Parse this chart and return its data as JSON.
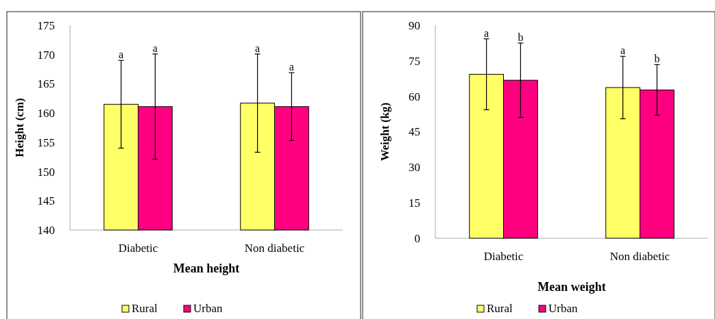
{
  "chart_data": [
    {
      "type": "bar",
      "xlabel": "Mean height",
      "ylabel": "Height (cm)",
      "categories": [
        "Diabetic",
        "Non diabetic"
      ],
      "ylim": [
        140,
        175
      ],
      "yticks": [
        140,
        145,
        150,
        155,
        160,
        165,
        170,
        175
      ],
      "grid": false,
      "legend": "bottom",
      "series": [
        {
          "name": "Rural",
          "color": "#ffff66",
          "values": [
            161.5,
            161.7
          ],
          "errors": [
            7.5,
            8.4
          ]
        },
        {
          "name": "Urban",
          "color": "#ff0080",
          "values": [
            161.1,
            161.1
          ],
          "errors": [
            9,
            5.8
          ]
        }
      ],
      "annotations": [
        "a",
        "a",
        "a",
        "a"
      ]
    },
    {
      "type": "bar",
      "xlabel": "Mean weight",
      "ylabel": "Weight (kg)",
      "categories": [
        "Diabetic",
        "Non diabetic"
      ],
      "ylim": [
        0,
        90
      ],
      "yticks": [
        0,
        15,
        30,
        45,
        60,
        75,
        90
      ],
      "grid": false,
      "legend": "bottom",
      "series": [
        {
          "name": "Rural",
          "color": "#ffff66",
          "values": [
            69.3,
            63.7
          ],
          "errors": [
            15,
            13.2
          ]
        },
        {
          "name": "Urban",
          "color": "#ff0080",
          "values": [
            66.8,
            62.7
          ],
          "errors": [
            15.7,
            10.7
          ]
        }
      ],
      "annotations": [
        "a",
        "b",
        "a",
        "b"
      ]
    }
  ]
}
